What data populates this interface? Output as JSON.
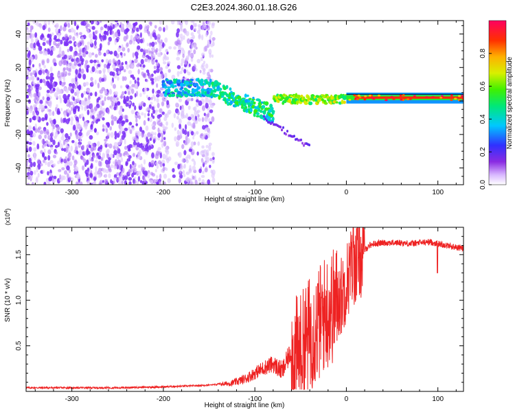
{
  "title": "C2E3.2024.360.01.18.G26",
  "colors": {
    "snr_line": "#ee2222",
    "spectrogram_noise": "#7a3ef0",
    "axis": "#000000"
  },
  "chart_data": [
    {
      "type": "heatmap",
      "xlabel": "Height of straight line (km)",
      "ylabel": "Frequency (Hz)",
      "xlim": [
        -350,
        128
      ],
      "ylim": [
        -50,
        48
      ],
      "xticks": [
        -300,
        -200,
        -100,
        0,
        100
      ],
      "yticks": [
        -40,
        -20,
        0,
        20,
        40
      ],
      "colorbar": {
        "label": "Normalized spectral amplitude",
        "range": [
          0,
          1
        ],
        "ticks": [
          "0.0",
          "0.2",
          "0.4",
          "0.6",
          "0.8"
        ],
        "colormap": "rainbow"
      },
      "regions": [
        {
          "desc": "scattered noise",
          "x": [
            -350,
            -145
          ],
          "freq": [
            -50,
            48
          ],
          "amplitude": [
            0.05,
            0.15
          ]
        },
        {
          "desc": "signal track",
          "x": [
            -200,
            -150
          ],
          "freq_center": 8,
          "amplitude": 0.35
        },
        {
          "desc": "signal track",
          "x": [
            -150,
            -80
          ],
          "freq_center": [
            8,
            -8
          ],
          "amplitude": 0.45
        },
        {
          "desc": "signal track",
          "x": [
            -80,
            0
          ],
          "freq_center": 1,
          "amplitude": 0.6
        },
        {
          "desc": "signal track",
          "x": [
            0,
            128
          ],
          "freq_center": 2,
          "amplitude": 0.85
        }
      ]
    },
    {
      "type": "line",
      "xlabel": "Height of straight line (km)",
      "ylabel": "SNR (10 * v/v)",
      "y_multiplier": "(x10^4)",
      "xlim": [
        -350,
        128
      ],
      "ylim": [
        0,
        1.8
      ],
      "xticks": [
        -300,
        -200,
        -100,
        0,
        100
      ],
      "yticks": [
        "0.5",
        "1.0",
        "1.5"
      ],
      "series": [
        {
          "x": [
            -350,
            -300,
            -250,
            -200,
            -170,
            -150,
            -125,
            -110,
            -100,
            -90,
            -80,
            -70,
            -60,
            -50,
            -45,
            -40,
            -35,
            -30,
            -25,
            -20,
            -15,
            -10,
            -5,
            0,
            5,
            10,
            15,
            20,
            25,
            30,
            40,
            50,
            60,
            70,
            80,
            90,
            100,
            110,
            120,
            128
          ],
          "y": [
            0.04,
            0.04,
            0.04,
            0.05,
            0.06,
            0.07,
            0.09,
            0.14,
            0.2,
            0.26,
            0.3,
            0.22,
            0.45,
            0.5,
            0.6,
            0.7,
            0.75,
            0.8,
            0.9,
            0.95,
            1.0,
            1.05,
            1.1,
            1.25,
            1.4,
            1.45,
            1.5,
            1.55,
            1.6,
            1.62,
            1.63,
            1.63,
            1.63,
            1.62,
            1.63,
            1.64,
            1.62,
            1.6,
            1.58,
            1.57
          ]
        }
      ]
    }
  ]
}
